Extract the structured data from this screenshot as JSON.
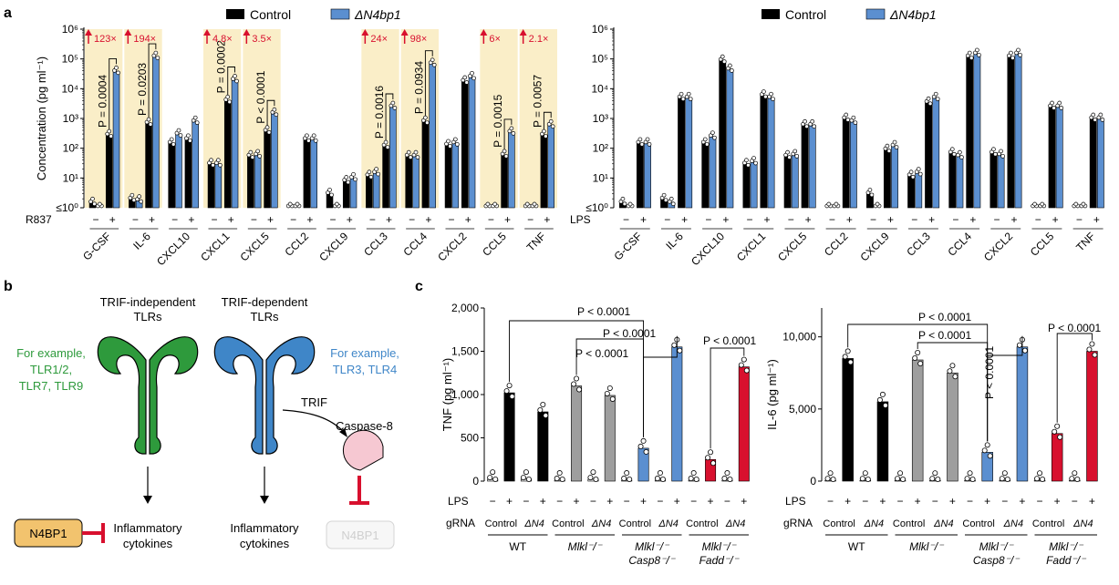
{
  "panels": {
    "a": "a",
    "b": "b",
    "c": "c"
  },
  "colors": {
    "control": "#000000",
    "n4": "#5b8fd0",
    "highlight": "#faeec8",
    "grey": "#9e9e9e",
    "red": "#d8102e",
    "green": "#2e9a3c",
    "blue": "#3f86c8",
    "pink": "#f6c8d2",
    "arrow_red": "#d8102e"
  },
  "legend": {
    "control": "Control",
    "n4": "ΔN4bp1"
  },
  "chart_data": [
    {
      "type": "bar",
      "panel": "a-left",
      "ylabel": "Concentration (pg ml⁻¹)",
      "yscale": "log",
      "ylim_exp": [
        0,
        6
      ],
      "yticks": [
        "≤10⁰",
        "10¹",
        "10²",
        "10³",
        "10⁴",
        "10⁵",
        "10⁶"
      ],
      "stim_label": "R837",
      "stim_ticks": [
        "−",
        "+"
      ],
      "categories": [
        "G-CSF",
        "IL-6",
        "CXCL10",
        "CXCL1",
        "CXCL5",
        "CCL2",
        "CXCL9",
        "CCL3",
        "CCL4",
        "CXCL2",
        "CCL5",
        "TNF"
      ],
      "highlighted": [
        "G-CSF",
        "IL-6",
        "CXCL1",
        "CXCL5",
        "CCL3",
        "CCL4",
        "CCL5",
        "TNF"
      ],
      "series": [
        {
          "name": "Control",
          "unstim": [
            1.5,
            2.0,
            150,
            30,
            55,
            1,
            3,
            12,
            55,
            130,
            1,
            1
          ],
          "stim": [
            280,
            700,
            200,
            4000,
            380,
            200,
            8,
            120,
            800,
            18000,
            60,
            280
          ]
        },
        {
          "name": "ΔN4bp1",
          "unstim": [
            1,
            1.8,
            300,
            30,
            60,
            1,
            1,
            15,
            55,
            150,
            1,
            1
          ],
          "stim": [
            38000,
            120000,
            800,
            20000,
            1500,
            200,
            10,
            2500,
            70000,
            25000,
            350,
            600
          ]
        }
      ],
      "pvalues": [
        {
          "category": "G-CSF",
          "text": "P = 0.0004"
        },
        {
          "category": "IL-6",
          "text": "P = 0.0203"
        },
        {
          "category": "CXCL1",
          "text": "P = 0.0002"
        },
        {
          "category": "CXCL5",
          "text": "P < 0.0001"
        },
        {
          "category": "CCL3",
          "text": "P = 0.0016"
        },
        {
          "category": "CCL4",
          "text": "P = 0.0934"
        },
        {
          "category": "CCL5",
          "text": "P = 0.0015"
        },
        {
          "category": "TNF",
          "text": "P = 0.0057"
        }
      ],
      "fold_changes": [
        {
          "category": "G-CSF",
          "text": "123×"
        },
        {
          "category": "IL-6",
          "text": "194×"
        },
        {
          "category": "CXCL1",
          "text": "4.8×"
        },
        {
          "category": "CXCL5",
          "text": "3.5×"
        },
        {
          "category": "CCL3",
          "text": "24×"
        },
        {
          "category": "CCL4",
          "text": "98×"
        },
        {
          "category": "CCL5",
          "text": "6×"
        },
        {
          "category": "TNF",
          "text": "2.1×"
        }
      ]
    },
    {
      "type": "bar",
      "panel": "a-right",
      "yscale": "log",
      "ylim_exp": [
        0,
        6
      ],
      "yticks": [
        "≤10⁰",
        "10¹",
        "10²",
        "10³",
        "10⁴",
        "10⁵",
        "10⁶"
      ],
      "stim_label": "LPS",
      "stim_ticks": [
        "−",
        "+"
      ],
      "categories": [
        "G-CSF",
        "IL-6",
        "CXCL10",
        "CXCL1",
        "CXCL5",
        "CCL2",
        "CXCL9",
        "CCL3",
        "CCL4",
        "CXCL2",
        "CCL5",
        "TNF"
      ],
      "series": [
        {
          "name": "Control",
          "unstim": [
            1.5,
            2.0,
            150,
            30,
            55,
            1,
            3,
            12,
            70,
            70,
            1,
            1
          ],
          "stim": [
            150,
            5000,
            90000,
            6000,
            600,
            1000,
            90,
            3500,
            120000,
            120000,
            2500,
            1000
          ]
        },
        {
          "name": "ΔN4bp1",
          "unstim": [
            1,
            1.5,
            250,
            35,
            60,
            1,
            1,
            15,
            55,
            60,
            1,
            1
          ],
          "stim": [
            150,
            5000,
            45000,
            5000,
            600,
            800,
            120,
            5000,
            150000,
            150000,
            2500,
            1000
          ]
        }
      ]
    },
    {
      "type": "bar",
      "panel": "c-left",
      "ylabel": "TNF (pg ml⁻¹)",
      "ylim": [
        0,
        2000
      ],
      "yticks": [
        "0",
        "500",
        "1,000",
        "1,500",
        "2,000"
      ],
      "ytick_values": [
        0,
        500,
        1000,
        1500,
        2000
      ],
      "stim_label": "LPS",
      "grna_label": "gRNA",
      "grna": [
        "Control",
        "ΔN4"
      ],
      "groups": [
        "WT",
        "Mlkl⁻/⁻",
        "Mlkl⁻/⁻ Casp8⁻/⁻",
        "Mlkl⁻/⁻ Fadd⁻/⁻"
      ],
      "values": [
        20,
        1020,
        20,
        800,
        10,
        1100,
        20,
        990,
        10,
        380,
        10,
        1550,
        10,
        250,
        10,
        1320
      ],
      "pvalues": [
        "P < 0.0001",
        "P < 0.0001",
        "P < 0.0001",
        "P < 0.0001"
      ]
    },
    {
      "type": "bar",
      "panel": "c-right",
      "ylabel": "IL-6 (pg ml⁻¹)",
      "ylim": [
        0,
        12000
      ],
      "yticks": [
        "0",
        "5,000",
        "10,000"
      ],
      "ytick_values": [
        0,
        5000,
        10000
      ],
      "stim_label": "LPS",
      "grna_label": "gRNA",
      "grna": [
        "Control",
        "ΔN4"
      ],
      "groups": [
        "WT",
        "Mlkl⁻/⁻",
        "Mlkl⁻/⁻ Casp8⁻/⁻",
        "Mlkl⁻/⁻ Fadd⁻/⁻"
      ],
      "values": [
        50,
        8500,
        50,
        5500,
        50,
        8400,
        50,
        7500,
        50,
        2000,
        50,
        9300,
        50,
        3300,
        50,
        9000
      ],
      "pvalues": [
        "P < 0.0001",
        "P < 0.0001",
        "P < 0.0001",
        "P < 0.0001"
      ]
    }
  ],
  "diagram": {
    "trif_independent": "TRIF-independent",
    "tlrs": "TLRs",
    "trif_dependent": "TRIF-dependent",
    "example_left_1": "For example,",
    "example_left_2": "TLR1/2,",
    "example_left_3": "TLR7, TLR9",
    "example_right_1": "For example,",
    "example_right_2": "TLR3, TLR4",
    "trif": "TRIF",
    "caspase8": "Caspase-8",
    "n4bp1": "N4BP1",
    "inflammatory": "Inflammatory",
    "cytokines": "cytokines"
  }
}
